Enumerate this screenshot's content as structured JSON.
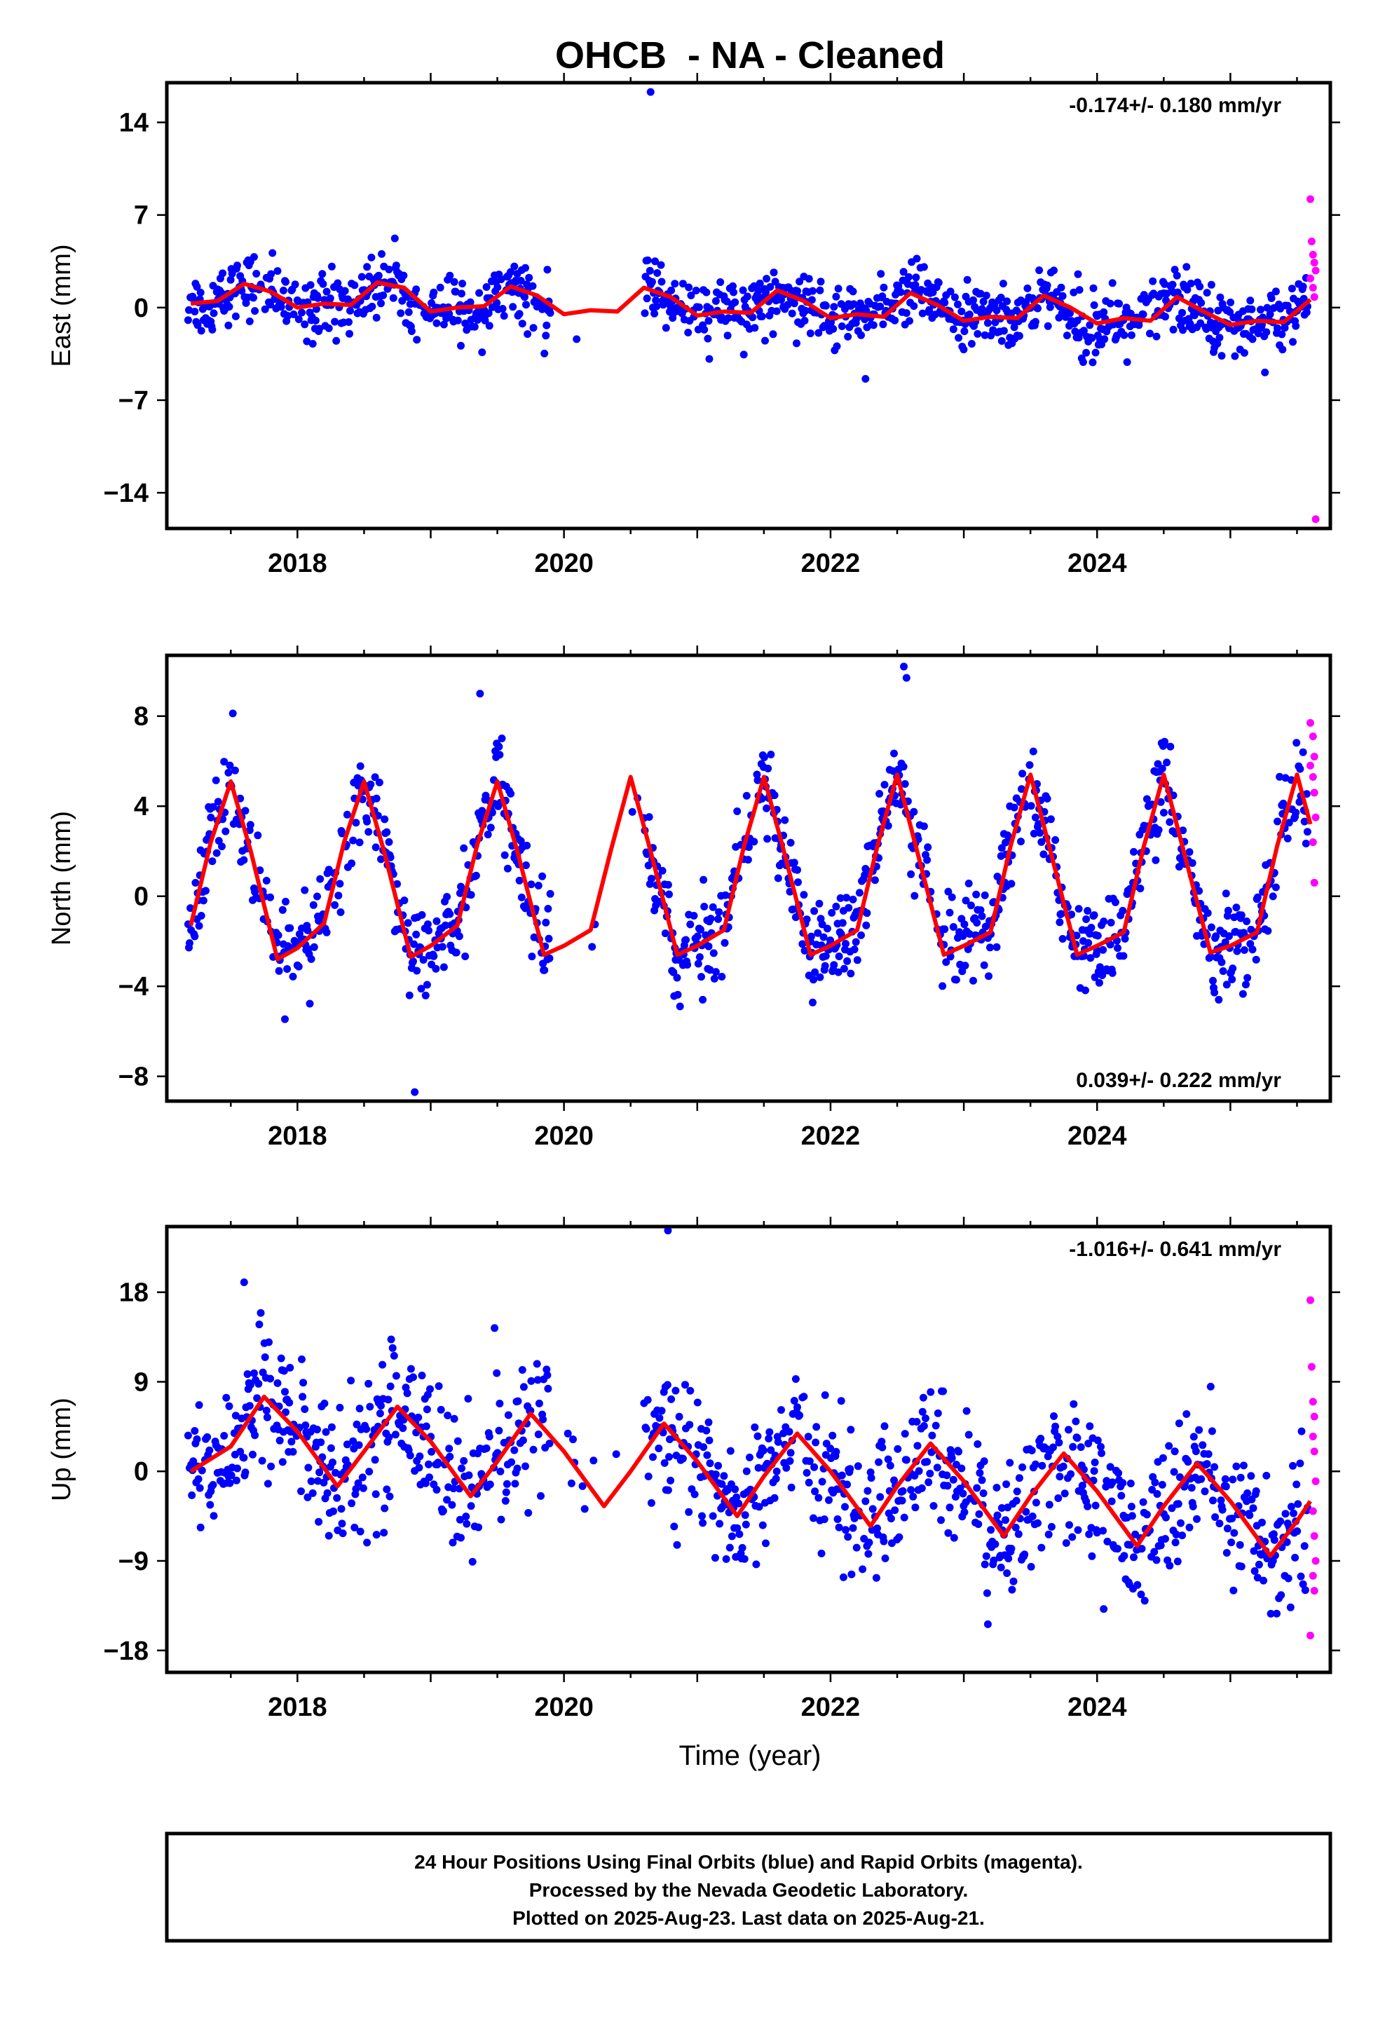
{
  "figure": {
    "title": "OHCB  - NA - Cleaned",
    "xlabel": "Time (year)",
    "footer": [
      "24 Hour Positions Using Final Orbits (blue) and Rapid Orbits (magenta).",
      "Processed by the Nevada Geodetic Laboratory.",
      "Plotted on 2025-Aug-23. Last data on 2025-Aug-21."
    ]
  },
  "colors": {
    "final": "#0000ff",
    "rapid": "#ff00ff",
    "model": "#ff0000",
    "axis": "#000000"
  },
  "chart_data": [
    {
      "type": "scatter",
      "id": "east",
      "ylabel": "East (mm)",
      "rate": "-0.174+/- 0.180 mm/yr",
      "rate_position": "top-right",
      "xlim": [
        2017.02,
        2025.75
      ],
      "ylim": [
        -16.7,
        17.0
      ],
      "xticks": [
        2018,
        2020,
        2022,
        2024
      ],
      "yticks": [
        -14,
        -7,
        0,
        7,
        14
      ],
      "series": [
        {
          "role": "model",
          "x": [
            2017.2,
            2017.4,
            2017.6,
            2017.8,
            2018.0,
            2018.2,
            2018.4,
            2018.6,
            2018.8,
            2019.0,
            2019.2,
            2019.4,
            2019.6,
            2019.8,
            2020.0,
            2020.2,
            2020.4,
            2020.6,
            2020.8,
            2021.0,
            2021.2,
            2021.4,
            2021.6,
            2021.8,
            2022.0,
            2022.2,
            2022.4,
            2022.6,
            2022.8,
            2023.0,
            2023.2,
            2023.4,
            2023.6,
            2023.8,
            2024.0,
            2024.2,
            2024.4,
            2024.6,
            2024.8,
            2025.0,
            2025.2,
            2025.4,
            2025.6
          ],
          "y": [
            0.3,
            0.5,
            1.8,
            1.2,
            0.0,
            0.3,
            0.2,
            1.9,
            1.5,
            -0.3,
            0.0,
            0.1,
            1.6,
            0.9,
            -0.5,
            -0.2,
            -0.3,
            1.5,
            0.8,
            -0.6,
            -0.3,
            -0.4,
            1.3,
            0.5,
            -0.8,
            -0.5,
            -0.7,
            1.1,
            0.2,
            -1.0,
            -0.7,
            -0.8,
            0.9,
            0.0,
            -1.2,
            -0.8,
            -1.0,
            0.8,
            -0.3,
            -1.3,
            -1.0,
            -1.1,
            0.6
          ]
        },
        {
          "role": "outlier",
          "x": [
            2020.65
          ],
          "y": [
            16.3
          ]
        },
        {
          "role": "rapid",
          "x": [
            2025.6,
            2025.61,
            2025.62,
            2025.63,
            2025.64,
            2025.6,
            2025.62,
            2025.63,
            2025.64
          ],
          "y": [
            8.2,
            5.0,
            4.0,
            3.4,
            2.8,
            2.2,
            1.5,
            0.8,
            -16.0
          ]
        }
      ]
    },
    {
      "type": "scatter",
      "id": "north",
      "ylabel": "North (mm)",
      "rate": "0.039+/- 0.222 mm/yr",
      "rate_position": "bottom-right",
      "xlim": [
        2017.02,
        2025.75
      ],
      "ylim": [
        -9.1,
        10.7
      ],
      "xticks": [
        2018,
        2020,
        2022,
        2024
      ],
      "yticks": [
        -8,
        -4,
        0,
        4,
        8
      ],
      "series": [
        {
          "role": "model",
          "x": [
            2017.2,
            2017.35,
            2017.5,
            2017.65,
            2017.85,
            2018.0,
            2018.2,
            2018.35,
            2018.5,
            2018.65,
            2018.85,
            2019.0,
            2019.2,
            2019.35,
            2019.5,
            2019.65,
            2019.85,
            2020.0,
            2020.2,
            2020.35,
            2020.5,
            2020.65,
            2020.85,
            2021.0,
            2021.2,
            2021.35,
            2021.5,
            2021.65,
            2021.85,
            2022.0,
            2022.2,
            2022.35,
            2022.5,
            2022.65,
            2022.85,
            2023.0,
            2023.2,
            2023.35,
            2023.5,
            2023.65,
            2023.85,
            2024.0,
            2024.2,
            2024.35,
            2024.5,
            2024.65,
            2024.85,
            2025.0,
            2025.2,
            2025.35,
            2025.5,
            2025.6
          ],
          "y": [
            -1.3,
            2.4,
            5.1,
            2.0,
            -2.8,
            -2.3,
            -1.2,
            2.4,
            5.1,
            2.0,
            -2.7,
            -2.2,
            -1.3,
            2.3,
            5.1,
            2.0,
            -2.6,
            -2.2,
            -1.5,
            2.0,
            5.3,
            2.0,
            -2.6,
            -2.2,
            -1.5,
            2.2,
            5.3,
            2.0,
            -2.6,
            -2.2,
            -1.5,
            2.2,
            5.4,
            2.0,
            -2.6,
            -2.2,
            -1.6,
            2.2,
            5.4,
            2.0,
            -2.6,
            -2.2,
            -1.6,
            2.2,
            5.4,
            2.0,
            -2.5,
            -2.2,
            -1.6,
            2.2,
            5.4,
            3.2
          ]
        },
        {
          "role": "outlier",
          "x": [
            2018.88,
            2019.37,
            2022.55,
            2022.57
          ],
          "y": [
            -8.7,
            9.0,
            10.2,
            9.7
          ]
        },
        {
          "role": "rapid",
          "x": [
            2025.6,
            2025.62,
            2025.63,
            2025.6,
            2025.62,
            2025.63,
            2025.64,
            2025.62,
            2025.63
          ],
          "y": [
            7.7,
            7.1,
            6.2,
            5.8,
            5.3,
            4.6,
            3.5,
            2.4,
            0.6
          ]
        }
      ]
    },
    {
      "type": "scatter",
      "id": "up",
      "ylabel": "Up (mm)",
      "rate": "-1.016+/- 0.641 mm/yr",
      "rate_position": "top-right",
      "xlim": [
        2017.02,
        2025.75
      ],
      "ylim": [
        -20.2,
        24.6
      ],
      "xticks": [
        2018,
        2020,
        2022,
        2024
      ],
      "yticks": [
        -18,
        -9,
        0,
        9,
        18
      ],
      "series": [
        {
          "role": "model",
          "x": [
            2017.2,
            2017.5,
            2017.75,
            2018.0,
            2018.3,
            2018.5,
            2018.75,
            2019.0,
            2019.3,
            2019.5,
            2019.75,
            2020.0,
            2020.3,
            2020.5,
            2020.75,
            2021.0,
            2021.3,
            2021.5,
            2021.75,
            2022.0,
            2022.3,
            2022.5,
            2022.75,
            2023.0,
            2023.3,
            2023.5,
            2023.75,
            2024.0,
            2024.3,
            2024.5,
            2024.75,
            2025.0,
            2025.3,
            2025.5,
            2025.6
          ],
          "y": [
            0.0,
            2.5,
            7.5,
            4.0,
            -1.5,
            2.0,
            6.5,
            3.0,
            -2.5,
            1.0,
            5.8,
            2.0,
            -3.5,
            0.0,
            4.8,
            1.0,
            -4.5,
            -0.5,
            3.8,
            0.0,
            -5.5,
            -1.5,
            2.8,
            -1.0,
            -6.5,
            -2.5,
            1.8,
            -2.0,
            -7.5,
            -3.5,
            0.8,
            -3.0,
            -8.5,
            -5.0,
            -3.0
          ]
        },
        {
          "role": "outlier",
          "x": [
            2020.78,
            2017.6
          ],
          "y": [
            24.2,
            19.0
          ]
        },
        {
          "role": "rapid",
          "x": [
            2025.6,
            2025.61,
            2025.62,
            2025.63,
            2025.62,
            2025.63,
            2025.64,
            2025.62,
            2025.63,
            2025.64,
            2025.62,
            2025.63,
            2025.6
          ],
          "y": [
            17.2,
            10.5,
            7.0,
            5.5,
            3.5,
            2.0,
            -1.0,
            -4.0,
            -6.5,
            -9.0,
            -10.5,
            -12.0,
            -16.5
          ]
        }
      ]
    }
  ]
}
